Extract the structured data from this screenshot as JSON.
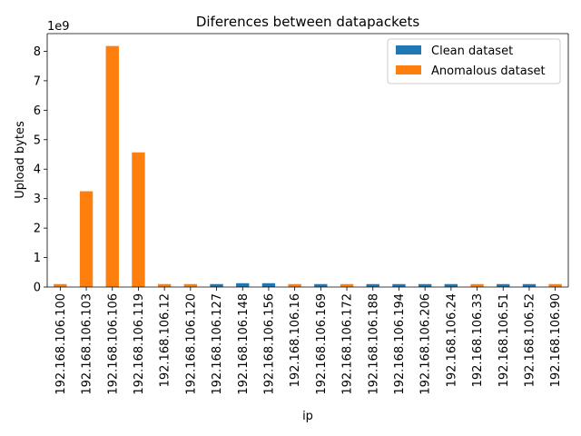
{
  "chart_data": {
    "type": "bar",
    "title": "Diferences between datapackets",
    "xlabel": "ip",
    "ylabel": "Upload bytes",
    "y_offset_label": "1e9",
    "ylim": [
      0,
      8.6
    ],
    "yticks": [
      "0",
      "1",
      "2",
      "3",
      "4",
      "5",
      "6",
      "7",
      "8"
    ],
    "ytick_values": [
      0,
      1,
      2,
      3,
      4,
      5,
      6,
      7,
      8
    ],
    "value_unit": "1e9 bytes",
    "legend_position": "top-right",
    "grid": false,
    "categories": [
      "192.168.106.100",
      "192.168.106.103",
      "192.168.106.106",
      "192.168.106.119",
      "192.168.106.12",
      "192.168.106.120",
      "192.168.106.127",
      "192.168.106.148",
      "192.168.106.156",
      "192.168.106.16",
      "192.168.106.169",
      "192.168.106.172",
      "192.168.106.188",
      "192.168.106.194",
      "192.168.106.206",
      "192.168.106.24",
      "192.168.106.33",
      "192.168.106.51",
      "192.168.106.52",
      "192.168.106.90"
    ],
    "series": [
      {
        "name": "Clean dataset",
        "color": "#1f77b4",
        "values": [
          0,
          0,
          0,
          0,
          0,
          0,
          0.1,
          0.13,
          0.13,
          0,
          0.1,
          0,
          0.1,
          0.1,
          0.1,
          0.1,
          0,
          0.1,
          0.1,
          0
        ]
      },
      {
        "name": "Anomalous dataset",
        "color": "#ff7f0e",
        "values": [
          0.1,
          3.25,
          8.18,
          4.57,
          0.1,
          0.1,
          0,
          0,
          0,
          0.1,
          0,
          0.1,
          0,
          0,
          0,
          0,
          0.1,
          0,
          0,
          0.1
        ]
      }
    ]
  }
}
